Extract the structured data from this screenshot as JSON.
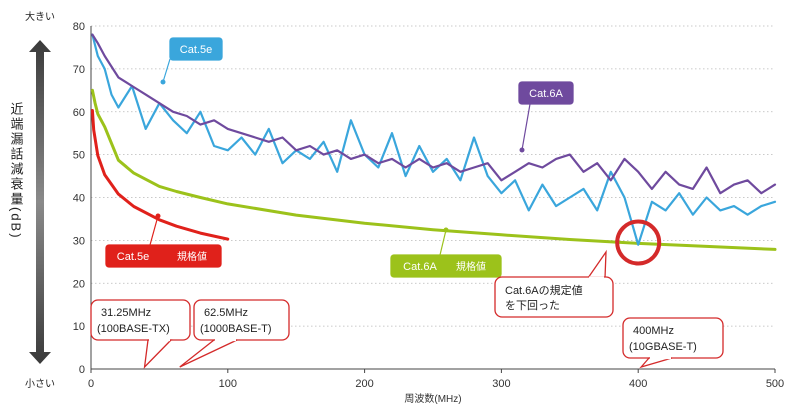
{
  "chart_data": {
    "type": "line",
    "xlabel": "周波数(MHz)",
    "ylabel": "近端漏話減衰量(dB)",
    "xlim": [
      0,
      500
    ],
    "ylim": [
      0,
      80
    ],
    "x_ticks": [
      0,
      100,
      200,
      300,
      400,
      500
    ],
    "y_ticks": [
      0,
      10,
      20,
      30,
      40,
      50,
      60,
      70,
      80
    ],
    "y_arrow_top_label": "大きい",
    "y_arrow_bottom_label": "小さい",
    "series": [
      {
        "name": "Cat.5e",
        "kind": "measured",
        "color": "#3aa6dc",
        "x": [
          1,
          5,
          10,
          15,
          20,
          30,
          40,
          50,
          60,
          70,
          80,
          90,
          100,
          110,
          120,
          130,
          140,
          150,
          160,
          170,
          180,
          190,
          200,
          210,
          220,
          230,
          240,
          250,
          260,
          270,
          280,
          290,
          300,
          310,
          320,
          330,
          340,
          350,
          360,
          370,
          380,
          390,
          400,
          410,
          420,
          430,
          440,
          450,
          460,
          470,
          480,
          490,
          500
        ],
        "y": [
          78,
          73,
          70,
          64,
          61,
          66,
          56,
          62,
          58,
          55,
          60,
          52,
          51,
          54,
          50,
          56,
          48,
          51,
          49,
          53,
          46,
          58,
          50,
          47,
          55,
          45,
          52,
          46,
          49,
          44,
          54,
          45,
          41,
          44,
          37,
          43,
          38,
          40,
          42,
          37,
          46,
          40,
          29,
          39,
          37,
          41,
          36,
          40,
          37,
          38,
          36,
          38,
          39
        ]
      },
      {
        "name": "Cat.6A",
        "kind": "measured",
        "color": "#6f4a9e",
        "x": [
          1,
          5,
          10,
          20,
          30,
          40,
          50,
          60,
          70,
          80,
          90,
          100,
          110,
          120,
          130,
          140,
          150,
          160,
          170,
          180,
          190,
          200,
          210,
          220,
          230,
          240,
          250,
          260,
          270,
          280,
          290,
          300,
          310,
          320,
          330,
          340,
          350,
          360,
          370,
          380,
          390,
          400,
          410,
          420,
          430,
          440,
          450,
          460,
          470,
          480,
          490,
          500
        ],
        "y": [
          78,
          76,
          73,
          68,
          66,
          64,
          62,
          60,
          59,
          57,
          58,
          56,
          55,
          54,
          53,
          54,
          51,
          52,
          50,
          51,
          49,
          50,
          48,
          49,
          47,
          49,
          47,
          48,
          46,
          47,
          48,
          44,
          46,
          48,
          47,
          49,
          50,
          46,
          48,
          44,
          49,
          46,
          42,
          46,
          43,
          42,
          47,
          41,
          43,
          44,
          41,
          43
        ]
      },
      {
        "name": "Cat.6A 規格値",
        "kind": "limit",
        "color": "#9cc21b",
        "x": [
          1,
          3,
          5,
          10,
          20,
          31.25,
          50,
          62.5,
          80,
          100,
          150,
          200,
          250,
          300,
          350,
          400,
          450,
          500
        ],
        "y": [
          65,
          62,
          59.5,
          56.5,
          48.7,
          45.7,
          42.6,
          41.4,
          40,
          38.5,
          35.9,
          34,
          32.5,
          31.3,
          30.2,
          29.3,
          28.6,
          27.9
        ]
      },
      {
        "name": "Cat.5e 規格値",
        "kind": "limit",
        "color": "#e0211b",
        "x": [
          1,
          2,
          5,
          10,
          20,
          31.25,
          50,
          62.5,
          80,
          100
        ],
        "y": [
          60.3,
          55.8,
          49.8,
          45.3,
          40.8,
          37.9,
          34.8,
          33.3,
          31.7,
          30.3
        ]
      }
    ],
    "annotations": {
      "cat5e_measured_label": "Cat.5e",
      "cat6a_measured_label": "Cat.6A",
      "cat5e_limit_name": "Cat.5e",
      "cat5e_limit_suffix": "規格値",
      "cat6a_limit_name": "Cat.6A",
      "cat6a_limit_suffix": "規格値",
      "violation_line1": "Cat.6Aの規定値",
      "violation_line2": "を下回った",
      "violation_point": {
        "x": 400,
        "y": 29.5
      },
      "callouts": [
        {
          "line1": "31.25MHz",
          "line2": "(100BASE-TX)",
          "x": 45
        },
        {
          "line1": "62.5MHz",
          "line2": "(1000BASE-T)",
          "x": 70
        },
        {
          "line1": "400MHz",
          "line2": "(10GBASE-T)",
          "x": 400
        }
      ]
    }
  }
}
